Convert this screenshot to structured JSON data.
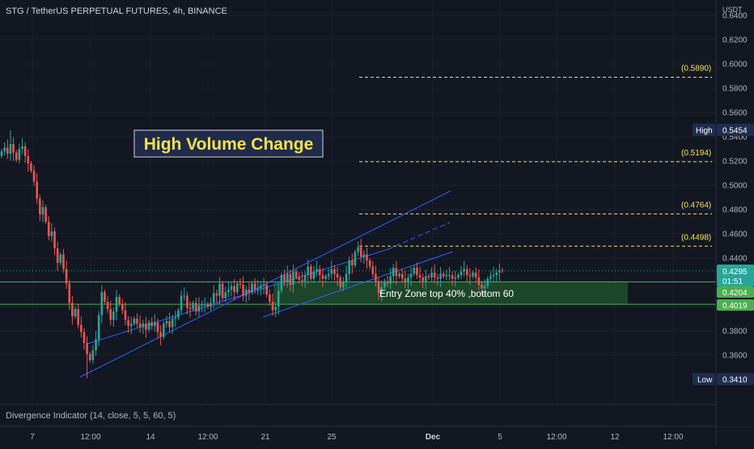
{
  "header": {
    "title": "STG / TetherUS PERPETUAL FUTURES, 4h, BINANCE",
    "currency": "USDT"
  },
  "banner": {
    "text": "High Volume Change"
  },
  "indicator": {
    "label": "Divergence Indicator (14, close, 5, 5, 60, 5)"
  },
  "zone": {
    "text": "Entry Zone top 40% ,bottom 60"
  },
  "price_scale": {
    "ticks": [
      "0.6400",
      "0.6200",
      "0.6000",
      "0.5800",
      "0.5600",
      "0.5400",
      "0.5200",
      "0.5000",
      "0.4800",
      "0.4600",
      "0.4400",
      "0.4200",
      "0.4000",
      "0.3800",
      "0.3600"
    ],
    "high_label": "High",
    "high_value": "0.5454",
    "low_label": "Low",
    "low_value": "0.3410",
    "current_price": "0.4295",
    "countdown": "01:51",
    "zone_top": "0.4204",
    "zone_bottom": "0.4019"
  },
  "time_axis": {
    "ticks": [
      "7",
      "12:00",
      "14",
      "12:00",
      "21",
      "25",
      "Dec",
      "5",
      "12:00",
      "12",
      "12:00"
    ]
  },
  "colors": {
    "up": "#26a69a",
    "down": "#ef5350",
    "channel": "#2962ff",
    "fib": "#f7e14d",
    "zone": "#1e4d2b",
    "zone_line": "#4caf50",
    "bg": "#131722",
    "text": "#d1d4dc"
  },
  "chart_data": {
    "type": "candlestick",
    "title": "STG / TetherUS PERPETUAL FUTURES, 4h, BINANCE",
    "y_unit": "USDT",
    "ylim": [
      0.33,
      0.645
    ],
    "x_ticks": [
      "7",
      "12:00",
      "14",
      "12:00",
      "21",
      "25",
      "Dec",
      "5",
      "12:00",
      "12",
      "12:00"
    ],
    "fib_levels": [
      {
        "label": "(0.5890)",
        "value": 0.589
      },
      {
        "label": "(0.5194)",
        "value": 0.5194
      },
      {
        "label": "(0.4764)",
        "value": 0.4764
      },
      {
        "label": "(0.4498)",
        "value": 0.4498
      }
    ],
    "entry_zone": {
      "top": 0.4204,
      "bottom": 0.4019
    },
    "session_high": 0.5454,
    "session_low": 0.341,
    "last_price": 0.4295,
    "candles_close": [
      0.528,
      0.531,
      0.526,
      0.534,
      0.527,
      0.521,
      0.53,
      0.532,
      0.524,
      0.518,
      0.512,
      0.503,
      0.489,
      0.476,
      0.482,
      0.47,
      0.458,
      0.462,
      0.448,
      0.436,
      0.443,
      0.431,
      0.419,
      0.403,
      0.392,
      0.398,
      0.385,
      0.379,
      0.37,
      0.361,
      0.356,
      0.364,
      0.373,
      0.393,
      0.412,
      0.404,
      0.398,
      0.389,
      0.396,
      0.408,
      0.402,
      0.397,
      0.389,
      0.384,
      0.386,
      0.39,
      0.386,
      0.383,
      0.386,
      0.381,
      0.387,
      0.384,
      0.387,
      0.379,
      0.375,
      0.386,
      0.388,
      0.383,
      0.39,
      0.391,
      0.397,
      0.409,
      0.409,
      0.399,
      0.398,
      0.403,
      0.396,
      0.401,
      0.402,
      0.402,
      0.4,
      0.403,
      0.411,
      0.409,
      0.419,
      0.407,
      0.412,
      0.414,
      0.417,
      0.412,
      0.419,
      0.418,
      0.409,
      0.414,
      0.412,
      0.419,
      0.414,
      0.415,
      0.417,
      0.418,
      0.41,
      0.404,
      0.397,
      0.4,
      0.413,
      0.426,
      0.42,
      0.427,
      0.418,
      0.429,
      0.424,
      0.422,
      0.421,
      0.426,
      0.433,
      0.423,
      0.429,
      0.431,
      0.426,
      0.423,
      0.425,
      0.427,
      0.431,
      0.427,
      0.424,
      0.416,
      0.42,
      0.427,
      0.438,
      0.434,
      0.445,
      0.449,
      0.441,
      0.443,
      0.438,
      0.433,
      0.427,
      0.421,
      0.411,
      0.416,
      0.421,
      0.419,
      0.425,
      0.432,
      0.425,
      0.427,
      0.423,
      0.42,
      0.424,
      0.427,
      0.432,
      0.426,
      0.424,
      0.421,
      0.425,
      0.424,
      0.428,
      0.424,
      0.423,
      0.427,
      0.425,
      0.426,
      0.426,
      0.423,
      0.424,
      0.426,
      0.429,
      0.431,
      0.426,
      0.425,
      0.428,
      0.424,
      0.418,
      0.415,
      0.417,
      0.423,
      0.425,
      0.426,
      0.428,
      0.43,
      0.4295
    ]
  }
}
